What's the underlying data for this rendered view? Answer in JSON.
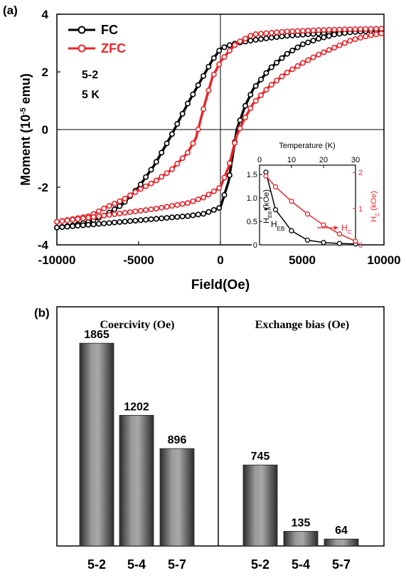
{
  "chart_data": [
    {
      "type": "line",
      "panel_label": "(a)",
      "xlabel": "Field(Oe)",
      "ylabel": "Moment (10",
      "ylabel_exp": "-5",
      "ylabel_unit": " emu)",
      "xlim": [
        -10000,
        10000
      ],
      "ylim": [
        -4,
        4
      ],
      "xticks": [
        "-10000",
        "-5000",
        "0",
        "5000",
        "10000"
      ],
      "yticks": [
        "4",
        "2",
        "0",
        "-2",
        "-4"
      ],
      "annotations": [
        "5-2",
        "5 K"
      ],
      "legend": "top-left",
      "series": [
        {
          "name": "FC",
          "color": "#000000",
          "descending": [
            [
              10000,
              3.45
            ],
            [
              8000,
              3.4
            ],
            [
              6000,
              3.33
            ],
            [
              4000,
              3.25
            ],
            [
              3000,
              3.18
            ],
            [
              2000,
              3.1
            ],
            [
              1000,
              3.0
            ],
            [
              500,
              2.92
            ],
            [
              0,
              2.8
            ],
            [
              -500,
              2.4
            ],
            [
              -1000,
              1.9
            ],
            [
              -2000,
              0.9
            ],
            [
              -3000,
              -0.2
            ],
            [
              -4000,
              -1.2
            ],
            [
              -5000,
              -2.0
            ],
            [
              -6000,
              -2.6
            ],
            [
              -7000,
              -2.95
            ],
            [
              -8000,
              -3.2
            ],
            [
              -9000,
              -3.32
            ],
            [
              -10000,
              -3.4
            ]
          ],
          "ascending": [
            [
              -10000,
              -3.4
            ],
            [
              -8000,
              -3.3
            ],
            [
              -6000,
              -3.2
            ],
            [
              -4000,
              -3.1
            ],
            [
              -2000,
              -3.0
            ],
            [
              -1000,
              -2.92
            ],
            [
              0,
              -2.7
            ],
            [
              500,
              -1.8
            ],
            [
              1000,
              0.0
            ],
            [
              1500,
              0.8
            ],
            [
              2000,
              1.4
            ],
            [
              3000,
              2.1
            ],
            [
              4000,
              2.6
            ],
            [
              5000,
              2.95
            ],
            [
              6000,
              3.15
            ],
            [
              7000,
              3.3
            ],
            [
              8000,
              3.38
            ],
            [
              10000,
              3.45
            ]
          ]
        },
        {
          "name": "ZFC",
          "color": "#e8262c",
          "descending": [
            [
              10000,
              3.5
            ],
            [
              8000,
              3.48
            ],
            [
              6000,
              3.45
            ],
            [
              4000,
              3.4
            ],
            [
              2000,
              3.3
            ],
            [
              1000,
              3.0
            ],
            [
              500,
              2.7
            ],
            [
              0,
              2.35
            ],
            [
              -500,
              1.8
            ],
            [
              -1000,
              0.8
            ],
            [
              -1500,
              -0.3
            ],
            [
              -2000,
              -0.8
            ],
            [
              -3000,
              -1.4
            ],
            [
              -4000,
              -1.8
            ],
            [
              -5000,
              -2.1
            ],
            [
              -6000,
              -2.45
            ],
            [
              -7000,
              -2.7
            ],
            [
              -8000,
              -3.0
            ],
            [
              -9000,
              -3.1
            ],
            [
              -10000,
              -3.2
            ]
          ],
          "ascending": [
            [
              -10000,
              -3.2
            ],
            [
              -8000,
              -3.05
            ],
            [
              -6000,
              -2.9
            ],
            [
              -4000,
              -2.75
            ],
            [
              -2000,
              -2.55
            ],
            [
              -1000,
              -2.35
            ],
            [
              0,
              -2.0
            ],
            [
              500,
              -1.3
            ],
            [
              1000,
              -0.2
            ],
            [
              1500,
              0.4
            ],
            [
              2000,
              0.9
            ],
            [
              3000,
              1.5
            ],
            [
              4000,
              1.95
            ],
            [
              5000,
              2.3
            ],
            [
              6000,
              2.6
            ],
            [
              7000,
              2.85
            ],
            [
              8000,
              3.1
            ],
            [
              9000,
              3.25
            ],
            [
              10000,
              3.35
            ]
          ]
        }
      ],
      "inset": {
        "type": "line",
        "xlabel": "Temperature (K)",
        "xticks": [
          "0",
          "10",
          "20",
          "30"
        ],
        "xlim": [
          0,
          30
        ],
        "left_ylabel": "H",
        "left_ylabel_sub": "EB",
        "left_ylabel_unit": " (kOe)",
        "left_yticks": [
          "1.5",
          "1.0",
          "0.5",
          "0"
        ],
        "left_ylim": [
          0,
          1.7
        ],
        "right_ylabel": "H",
        "right_ylabel_sub": "C",
        "right_ylabel_unit": " (kOe)",
        "right_yticks": [
          "2",
          "1",
          "0"
        ],
        "right_ylim": [
          0,
          2.2
        ],
        "series": [
          {
            "name": "H",
            "name_sub": "EB",
            "color": "#000000",
            "axis": "left",
            "x": [
              2,
              5,
              10,
              15,
              20,
              25,
              30
            ],
            "y": [
              1.55,
              0.75,
              0.3,
              0.1,
              0.05,
              0.03,
              0.02
            ]
          },
          {
            "name": "H",
            "name_sub": "C",
            "color": "#e8262c",
            "axis": "right",
            "x": [
              2,
              5,
              10,
              15,
              20,
              25,
              30
            ],
            "y": [
              1.9,
              1.6,
              1.2,
              0.85,
              0.55,
              0.3,
              0.1
            ]
          }
        ]
      }
    },
    {
      "type": "bar",
      "panel_label": "(b)",
      "groups": [
        {
          "title": "Coercivity (Oe)",
          "categories": [
            "5-2",
            "5-4",
            "5-7"
          ],
          "values": [
            1865,
            1202,
            896
          ]
        },
        {
          "title": "Exchange bias (Oe)",
          "categories": [
            "5-2",
            "5-4",
            "5-7"
          ],
          "values": [
            745,
            135,
            64
          ]
        }
      ],
      "ylim": [
        0,
        2200
      ]
    }
  ]
}
